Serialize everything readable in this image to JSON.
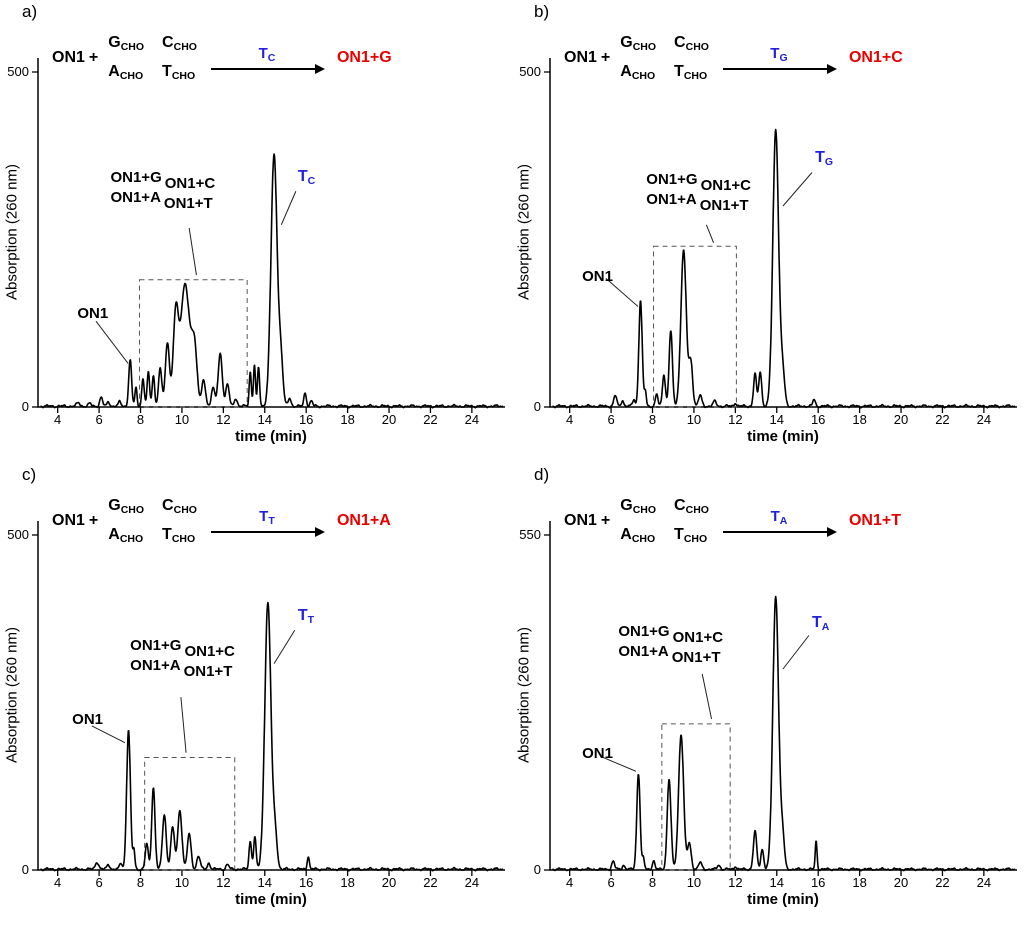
{
  "colors": {
    "annotation_blue": "#2020dd",
    "product_red": "#e80000",
    "trace_black": "#000000"
  },
  "panels": [
    {
      "scheme": {
        "reactant": "ON1",
        "plus": "+",
        "aldehydes": [
          {
            "main": "G",
            "sub": "CHO"
          },
          {
            "main": "C",
            "sub": "CHO"
          },
          {
            "main": "A",
            "sub": "CHO"
          },
          {
            "main": "T",
            "sub": "CHO"
          }
        ],
        "arrow_label": {
          "main": "T",
          "sub": "C"
        },
        "product": "ON1+G"
      }
    },
    {
      "scheme": {
        "reactant": "ON1",
        "plus": "+",
        "aldehydes": [
          {
            "main": "G",
            "sub": "CHO"
          },
          {
            "main": "C",
            "sub": "CHO"
          },
          {
            "main": "A",
            "sub": "CHO"
          },
          {
            "main": "T",
            "sub": "CHO"
          }
        ],
        "arrow_label": {
          "main": "T",
          "sub": "G"
        },
        "product": "ON1+C"
      }
    },
    {
      "scheme": {
        "reactant": "ON1",
        "plus": "+",
        "aldehydes": [
          {
            "main": "G",
            "sub": "CHO"
          },
          {
            "main": "C",
            "sub": "CHO"
          },
          {
            "main": "A",
            "sub": "CHO"
          },
          {
            "main": "T",
            "sub": "CHO"
          }
        ],
        "arrow_label": {
          "main": "T",
          "sub": "T"
        },
        "product": "ON1+A"
      }
    },
    {
      "scheme": {
        "reactant": "ON1",
        "plus": "+",
        "aldehydes": [
          {
            "main": "G",
            "sub": "CHO"
          },
          {
            "main": "C",
            "sub": "CHO"
          },
          {
            "main": "A",
            "sub": "CHO"
          },
          {
            "main": "T",
            "sub": "CHO"
          }
        ],
        "arrow_label": {
          "main": "T",
          "sub": "A"
        },
        "product": "ON1+T"
      }
    }
  ],
  "peaks_format": "[retention_time_min, peak_height_AU, gaussian_sigma_min]",
  "chart_data": [
    {
      "type": "line",
      "panel": "a)",
      "xlabel": "time (min)",
      "ylabel": "Absorption (260 nm)",
      "xlim": [
        3.05,
        25.6
      ],
      "xticks": [
        4,
        6,
        8,
        10,
        12,
        14,
        16,
        18,
        20,
        22,
        24
      ],
      "ylim": [
        0,
        520
      ],
      "yticks": [
        0,
        500
      ],
      "peaks": [
        [
          5.0,
          5,
          0.08
        ],
        [
          5.55,
          4,
          0.07
        ],
        [
          6.1,
          13,
          0.07
        ],
        [
          6.45,
          7,
          0.06
        ],
        [
          7.0,
          7,
          0.06
        ],
        [
          7.5,
          68,
          0.07
        ],
        [
          7.78,
          28,
          0.05
        ],
        [
          8.12,
          40,
          0.06
        ],
        [
          8.38,
          50,
          0.06
        ],
        [
          8.62,
          46,
          0.06
        ],
        [
          8.95,
          55,
          0.08
        ],
        [
          9.3,
          95,
          0.1
        ],
        [
          9.7,
          130,
          0.12
        ],
        [
          10.15,
          182,
          0.22
        ],
        [
          10.6,
          85,
          0.13
        ],
        [
          11.05,
          38,
          0.09
        ],
        [
          11.5,
          28,
          0.08
        ],
        [
          11.85,
          78,
          0.1
        ],
        [
          12.2,
          33,
          0.08
        ],
        [
          12.6,
          12,
          0.07
        ],
        [
          13.3,
          52,
          0.05
        ],
        [
          13.5,
          62,
          0.05
        ],
        [
          13.7,
          58,
          0.05
        ],
        [
          14.45,
          375,
          0.15
        ],
        [
          14.78,
          65,
          0.1
        ],
        [
          15.2,
          12,
          0.07
        ],
        [
          15.95,
          20,
          0.06
        ],
        [
          16.25,
          8,
          0.06
        ]
      ],
      "dashed_box": {
        "x1": 7.95,
        "x2": 13.15,
        "y": 190
      },
      "annotations": {
        "on1": {
          "text": "ON1",
          "x": 4.95,
          "y": 152,
          "line": [
            [
              5.85,
              128
            ],
            [
              7.4,
              65
            ]
          ]
        },
        "cluster": {
          "items": [
            "ON1+G",
            "ON1+C",
            "ON1+A",
            "ON1+T"
          ],
          "x": 6.55,
          "y": 355,
          "line": [
            [
              10.35,
              267
            ],
            [
              10.7,
              197
            ]
          ]
        },
        "template": {
          "main": "T",
          "sub": "C",
          "x": 15.6,
          "y": 357,
          "line": [
            [
              15.5,
              322
            ],
            [
              14.8,
              272
            ]
          ]
        }
      }
    },
    {
      "type": "line",
      "panel": "b)",
      "xlabel": "time (min)",
      "ylabel": "Absorption (260 nm)",
      "xlim": [
        3.05,
        25.6
      ],
      "xticks": [
        4,
        6,
        8,
        10,
        12,
        14,
        16,
        18,
        20,
        22,
        24
      ],
      "ylim": [
        0,
        520
      ],
      "yticks": [
        0,
        500
      ],
      "peaks": [
        [
          6.2,
          16,
          0.07
        ],
        [
          6.55,
          9,
          0.06
        ],
        [
          7.1,
          10,
          0.06
        ],
        [
          7.42,
          158,
          0.08
        ],
        [
          7.65,
          22,
          0.05
        ],
        [
          8.2,
          18,
          0.06
        ],
        [
          8.55,
          48,
          0.07
        ],
        [
          8.88,
          112,
          0.08
        ],
        [
          9.5,
          232,
          0.13
        ],
        [
          9.85,
          65,
          0.09
        ],
        [
          10.3,
          16,
          0.08
        ],
        [
          11.0,
          7,
          0.08
        ],
        [
          12.0,
          5,
          0.06
        ],
        [
          12.95,
          48,
          0.07
        ],
        [
          13.2,
          52,
          0.07
        ],
        [
          13.95,
          413,
          0.14
        ],
        [
          14.28,
          50,
          0.1
        ],
        [
          15.8,
          10,
          0.06
        ]
      ],
      "dashed_box": {
        "x1": 8.05,
        "x2": 12.05,
        "y": 240
      },
      "annotations": {
        "on1": {
          "text": "ON1",
          "x": 4.6,
          "y": 207,
          "line": [
            [
              5.75,
              192
            ],
            [
              7.3,
              150
            ]
          ]
        },
        "cluster": {
          "items": [
            "ON1+G",
            "ON1+C",
            "ON1+A",
            "ON1+T"
          ],
          "x": 7.7,
          "y": 352,
          "line": [
            [
              10.6,
              272
            ],
            [
              10.95,
              245
            ]
          ]
        },
        "template": {
          "main": "T",
          "sub": "G",
          "x": 15.85,
          "y": 385,
          "line": [
            [
              15.7,
              350
            ],
            [
              14.3,
              300
            ]
          ]
        }
      }
    },
    {
      "type": "line",
      "panel": "c)",
      "xlabel": "time (min)",
      "ylabel": "Absorption (260 nm)",
      "xlim": [
        3.05,
        25.6
      ],
      "xticks": [
        4,
        6,
        8,
        10,
        12,
        14,
        16,
        18,
        20,
        22,
        24
      ],
      "ylim": [
        0,
        520
      ],
      "yticks": [
        0,
        500
      ],
      "peaks": [
        [
          5.9,
          11,
          0.08
        ],
        [
          6.45,
          7,
          0.07
        ],
        [
          7.05,
          9,
          0.06
        ],
        [
          7.42,
          208,
          0.09
        ],
        [
          7.68,
          28,
          0.05
        ],
        [
          8.3,
          38,
          0.07
        ],
        [
          8.62,
          122,
          0.08
        ],
        [
          9.15,
          82,
          0.09
        ],
        [
          9.55,
          62,
          0.09
        ],
        [
          9.9,
          88,
          0.1
        ],
        [
          10.35,
          52,
          0.09
        ],
        [
          10.8,
          20,
          0.08
        ],
        [
          11.3,
          9,
          0.07
        ],
        [
          12.2,
          7,
          0.07
        ],
        [
          13.3,
          42,
          0.06
        ],
        [
          13.52,
          48,
          0.06
        ],
        [
          14.15,
          398,
          0.15
        ],
        [
          14.5,
          50,
          0.1
        ],
        [
          16.1,
          20,
          0.05
        ]
      ],
      "dashed_box": {
        "x1": 8.2,
        "x2": 12.55,
        "y": 168
      },
      "annotations": {
        "on1": {
          "text": "ON1",
          "x": 4.7,
          "y": 238,
          "line": [
            [
              5.65,
              215
            ],
            [
              7.25,
              190
            ]
          ]
        },
        "cluster": {
          "items": [
            "ON1+G",
            "ON1+C",
            "ON1+A",
            "ON1+T"
          ],
          "x": 7.5,
          "y": 348,
          "line": [
            [
              9.95,
              258
            ],
            [
              10.2,
              175
            ]
          ]
        },
        "template": {
          "main": "T",
          "sub": "T",
          "x": 15.6,
          "y": 392,
          "line": [
            [
              15.45,
              358
            ],
            [
              14.45,
              308
            ]
          ]
        }
      }
    },
    {
      "type": "line",
      "panel": "d)",
      "xlabel": "time (min)",
      "ylabel": "Absorption (260 nm)",
      "xlim": [
        3.05,
        25.6
      ],
      "xticks": [
        4,
        6,
        8,
        10,
        12,
        14,
        16,
        18,
        20,
        22,
        24
      ],
      "ylim": [
        0,
        570
      ],
      "yticks": [
        0,
        550
      ],
      "peaks": [
        [
          6.1,
          13,
          0.07
        ],
        [
          6.6,
          7,
          0.06
        ],
        [
          7.32,
          158,
          0.08
        ],
        [
          7.56,
          18,
          0.05
        ],
        [
          8.05,
          14,
          0.06
        ],
        [
          8.8,
          148,
          0.09
        ],
        [
          9.38,
          222,
          0.12
        ],
        [
          9.78,
          42,
          0.09
        ],
        [
          10.3,
          11,
          0.08
        ],
        [
          11.2,
          7,
          0.07
        ],
        [
          12.0,
          5,
          0.06
        ],
        [
          12.95,
          62,
          0.08
        ],
        [
          13.3,
          33,
          0.07
        ],
        [
          13.95,
          448,
          0.14
        ],
        [
          14.28,
          52,
          0.09
        ],
        [
          15.9,
          46,
          0.045
        ]
      ],
      "dashed_box": {
        "x1": 8.45,
        "x2": 11.75,
        "y": 240
      },
      "annotations": {
        "on1": {
          "text": "ON1",
          "x": 4.6,
          "y": 205,
          "line": [
            [
              5.6,
              185
            ],
            [
              7.2,
              162
            ]
          ]
        },
        "cluster": {
          "items": [
            "ON1+G",
            "ON1+C",
            "ON1+A",
            "ON1+T"
          ],
          "x": 6.35,
          "y": 405,
          "line": [
            [
              10.4,
              322
            ],
            [
              10.85,
              248
            ]
          ]
        },
        "template": {
          "main": "T",
          "sub": "A",
          "x": 15.7,
          "y": 420,
          "line": [
            [
              15.55,
              385
            ],
            [
              14.3,
              330
            ]
          ]
        }
      }
    }
  ]
}
